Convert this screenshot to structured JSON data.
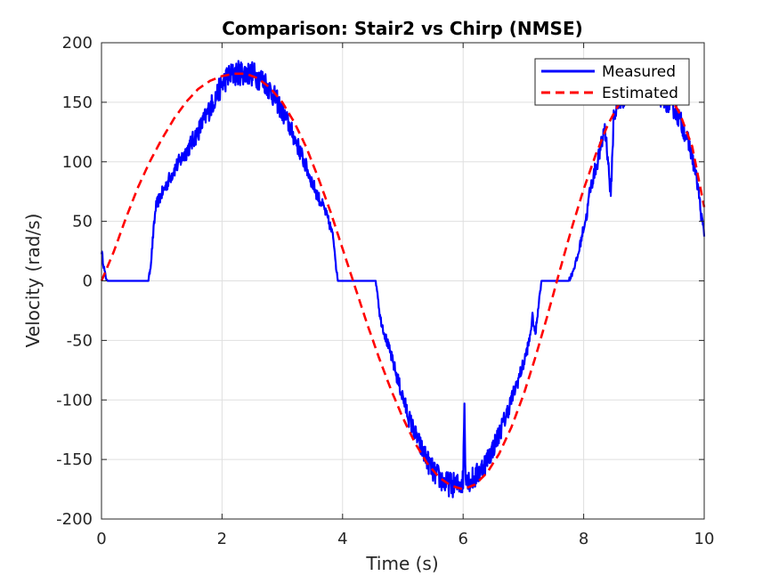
{
  "chart_data": {
    "type": "line",
    "title": "Comparison: Stair2 vs Chirp (NMSE)",
    "xlabel": "Time (s)",
    "ylabel": "Velocity (rad/s)",
    "xlim": [
      0,
      10
    ],
    "ylim": [
      -200,
      200
    ],
    "xticks": [
      0,
      2,
      4,
      6,
      8,
      10
    ],
    "xtick_labels": [
      "0",
      "2",
      "4",
      "6",
      "8",
      "10"
    ],
    "yticks": [
      200,
      150,
      100,
      50,
      0,
      -50,
      -100,
      -150,
      -200
    ],
    "ytick_labels": [
      "200",
      "150",
      "100",
      "50",
      "0",
      "-50",
      "-100",
      "-150",
      "-200"
    ],
    "grid": true,
    "legend_position": "top-right",
    "series": [
      {
        "name": "Measured",
        "color": "#0000ff",
        "style": "solid",
        "noisy": true,
        "points": [
          [
            0.0,
            25
          ],
          [
            0.03,
            15
          ],
          [
            0.06,
            5
          ],
          [
            0.1,
            0
          ],
          [
            0.3,
            0
          ],
          [
            0.5,
            0
          ],
          [
            0.78,
            0
          ],
          [
            0.82,
            15
          ],
          [
            0.86,
            40
          ],
          [
            0.9,
            62
          ],
          [
            0.95,
            68
          ],
          [
            1.05,
            78
          ],
          [
            1.2,
            93
          ],
          [
            1.4,
            108
          ],
          [
            1.6,
            125
          ],
          [
            1.8,
            145
          ],
          [
            2.0,
            165
          ],
          [
            2.1,
            172
          ],
          [
            2.3,
            175
          ],
          [
            2.5,
            174
          ],
          [
            2.7,
            168
          ],
          [
            2.9,
            152
          ],
          [
            3.1,
            132
          ],
          [
            3.3,
            108
          ],
          [
            3.5,
            82
          ],
          [
            3.6,
            70
          ],
          [
            3.7,
            60
          ],
          [
            3.8,
            45
          ],
          [
            3.85,
            35
          ],
          [
            3.88,
            20
          ],
          [
            3.9,
            8
          ],
          [
            3.92,
            0
          ],
          [
            4.1,
            0
          ],
          [
            4.3,
            0
          ],
          [
            4.55,
            0
          ],
          [
            4.58,
            -10
          ],
          [
            4.62,
            -30
          ],
          [
            4.7,
            -45
          ],
          [
            4.8,
            -62
          ],
          [
            4.9,
            -80
          ],
          [
            5.0,
            -98
          ],
          [
            5.1,
            -115
          ],
          [
            5.2,
            -128
          ],
          [
            5.3,
            -140
          ],
          [
            5.4,
            -150
          ],
          [
            5.5,
            -160
          ],
          [
            5.6,
            -165
          ],
          [
            5.7,
            -170
          ],
          [
            5.8,
            -171
          ],
          [
            5.9,
            -172
          ],
          [
            6.0,
            -168
          ],
          [
            6.02,
            -100
          ],
          [
            6.04,
            -160
          ],
          [
            6.1,
            -168
          ],
          [
            6.2,
            -165
          ],
          [
            6.3,
            -158
          ],
          [
            6.4,
            -150
          ],
          [
            6.5,
            -140
          ],
          [
            6.6,
            -128
          ],
          [
            6.7,
            -115
          ],
          [
            6.8,
            -100
          ],
          [
            6.9,
            -85
          ],
          [
            7.0,
            -70
          ],
          [
            7.1,
            -50
          ],
          [
            7.15,
            -30
          ],
          [
            7.2,
            -45
          ],
          [
            7.25,
            -20
          ],
          [
            7.3,
            0
          ],
          [
            7.4,
            0
          ],
          [
            7.6,
            0
          ],
          [
            7.75,
            0
          ],
          [
            7.8,
            5
          ],
          [
            7.9,
            20
          ],
          [
            8.0,
            45
          ],
          [
            8.05,
            55
          ],
          [
            8.1,
            75
          ],
          [
            8.2,
            95
          ],
          [
            8.3,
            115
          ],
          [
            8.35,
            130
          ],
          [
            8.4,
            105
          ],
          [
            8.45,
            70
          ],
          [
            8.5,
            140
          ],
          [
            8.6,
            150
          ],
          [
            8.7,
            158
          ],
          [
            8.8,
            162
          ],
          [
            8.9,
            163
          ],
          [
            9.0,
            162
          ],
          [
            9.1,
            160
          ],
          [
            9.2,
            158
          ],
          [
            9.3,
            155
          ],
          [
            9.4,
            150
          ],
          [
            9.5,
            145
          ],
          [
            9.6,
            135
          ],
          [
            9.7,
            122
          ],
          [
            9.8,
            105
          ],
          [
            9.9,
            78
          ],
          [
            9.95,
            55
          ],
          [
            10.0,
            40
          ]
        ]
      },
      {
        "name": "Estimated",
        "color": "#ff0000",
        "style": "dashed",
        "points": [
          [
            0.0,
            0
          ],
          [
            0.2,
            24
          ],
          [
            0.4,
            52
          ],
          [
            0.6,
            78
          ],
          [
            0.8,
            100
          ],
          [
            1.0,
            119
          ],
          [
            1.2,
            136
          ],
          [
            1.4,
            150
          ],
          [
            1.6,
            161
          ],
          [
            1.8,
            168
          ],
          [
            2.0,
            172
          ],
          [
            2.2,
            174
          ],
          [
            2.4,
            174
          ],
          [
            2.6,
            170
          ],
          [
            2.8,
            162
          ],
          [
            3.0,
            150
          ],
          [
            3.2,
            133
          ],
          [
            3.4,
            112
          ],
          [
            3.6,
            86
          ],
          [
            3.8,
            58
          ],
          [
            4.0,
            27
          ],
          [
            4.2,
            -4
          ],
          [
            4.4,
            -35
          ],
          [
            4.6,
            -64
          ],
          [
            4.8,
            -91
          ],
          [
            5.0,
            -115
          ],
          [
            5.2,
            -136
          ],
          [
            5.4,
            -153
          ],
          [
            5.6,
            -165
          ],
          [
            5.8,
            -172
          ],
          [
            6.0,
            -175
          ],
          [
            6.2,
            -171
          ],
          [
            6.4,
            -161
          ],
          [
            6.6,
            -145
          ],
          [
            6.8,
            -123
          ],
          [
            7.0,
            -96
          ],
          [
            7.2,
            -64
          ],
          [
            7.4,
            -29
          ],
          [
            7.6,
            8
          ],
          [
            7.8,
            44
          ],
          [
            8.0,
            77
          ],
          [
            8.2,
            106
          ],
          [
            8.4,
            131
          ],
          [
            8.6,
            150
          ],
          [
            8.8,
            163
          ],
          [
            9.0,
            170
          ],
          [
            9.2,
            168
          ],
          [
            9.4,
            158
          ],
          [
            9.6,
            140
          ],
          [
            9.8,
            113
          ],
          [
            10.0,
            62
          ]
        ]
      }
    ]
  }
}
